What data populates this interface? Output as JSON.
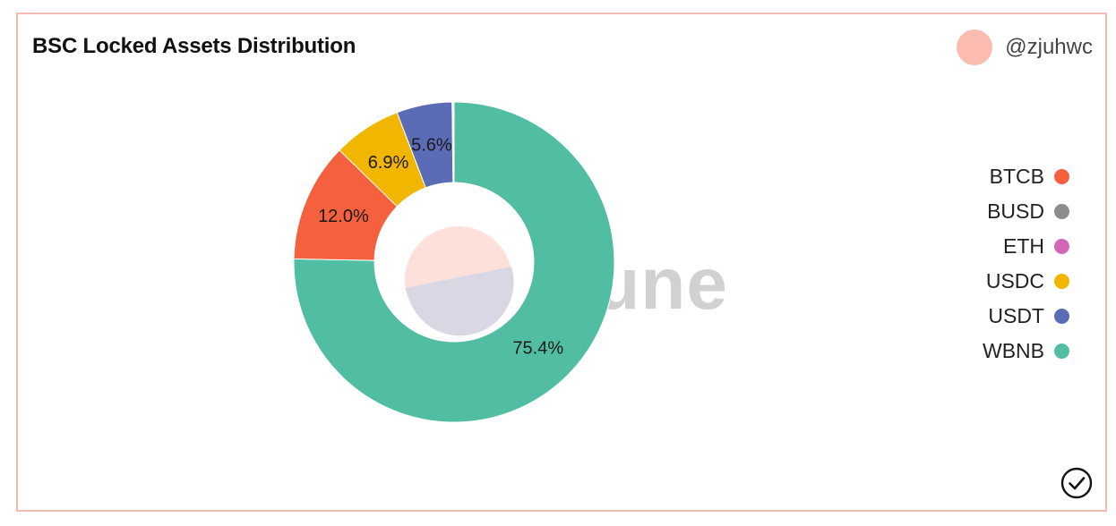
{
  "header": {
    "title": "BSC Locked Assets Distribution",
    "author": "@zjuhwc"
  },
  "watermark": "Dune",
  "colors": {
    "BTCB": "#f5603f",
    "BUSD": "#8c8c8c",
    "ETH": "#d167b8",
    "USDC": "#f1b600",
    "USDT": "#5c6bb5",
    "WBNB": "#51bea4",
    "border": "#f5b8b3",
    "avatar": "#fdbcb0"
  },
  "chart_data": {
    "type": "pie",
    "title": "BSC Locked Assets Distribution",
    "donut": true,
    "legend_position": "right",
    "slices": [
      {
        "label": "WBNB",
        "value": 75.4,
        "display": "75.4%"
      },
      {
        "label": "BTCB",
        "value": 12.0,
        "display": "12.0%"
      },
      {
        "label": "USDC",
        "value": 6.9,
        "display": "6.9%"
      },
      {
        "label": "USDT",
        "value": 5.6,
        "display": "5.6%"
      },
      {
        "label": "ETH",
        "value": 0.1,
        "display": ""
      },
      {
        "label": "BUSD",
        "value": 0.1,
        "display": ""
      }
    ],
    "legend": [
      "BTCB",
      "BUSD",
      "ETH",
      "USDC",
      "USDT",
      "WBNB"
    ]
  }
}
